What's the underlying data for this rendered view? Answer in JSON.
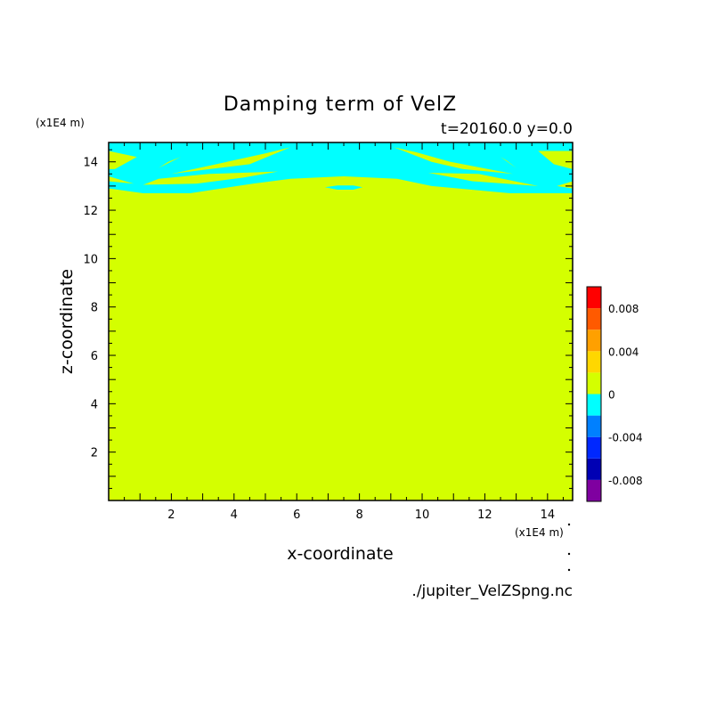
{
  "chart_data": {
    "type": "heatmap",
    "title": "Damping term of VelZ",
    "subtitle": "t=20160.0 y=0.0",
    "xlabel": "x-coordinate",
    "ylabel": "z-coordinate",
    "x_unit": "(x1E4 m)",
    "y_unit": "(x1E4 m)",
    "source": "./jupiter_VelZSpng.nc",
    "xlim": [
      0,
      14.8
    ],
    "ylim": [
      0,
      14.8
    ],
    "x_ticks": [
      2,
      4,
      6,
      8,
      10,
      12,
      14
    ],
    "y_ticks": [
      2,
      4,
      6,
      8,
      10,
      12,
      14
    ],
    "colorbar": {
      "levels": [
        -0.01,
        -0.008,
        -0.006,
        -0.004,
        -0.002,
        0,
        0.002,
        0.004,
        0.006,
        0.008,
        0.01
      ],
      "colors": [
        "#7f00a0",
        "#0000b4",
        "#0028ff",
        "#0080ff",
        "#00ffff",
        "#d4ff00",
        "#ffd700",
        "#ffa000",
        "#ff5a00",
        "#ff0000",
        "#ffaaaa"
      ],
      "tick_labels": [
        "-0.008",
        "-0.004",
        "0",
        "0.004",
        "0.008"
      ],
      "tick_values": [
        -0.008,
        -0.004,
        0,
        0.004,
        0.008
      ]
    },
    "background_value_range": [
      0,
      0.002
    ],
    "regions": [
      {
        "value_range": [
          -0.002,
          0
        ],
        "polygon": [
          [
            0,
            14.8
          ],
          [
            14.8,
            14.8
          ],
          [
            14.8,
            13.2
          ],
          [
            14.3,
            13.0
          ],
          [
            14.8,
            12.9
          ],
          [
            14.8,
            12.7
          ],
          [
            12.8,
            12.7
          ],
          [
            10.3,
            13.0
          ],
          [
            9.2,
            13.3
          ],
          [
            7.5,
            13.4
          ],
          [
            5.8,
            13.3
          ],
          [
            4.6,
            13.1
          ],
          [
            2.6,
            12.7
          ],
          [
            1.1,
            12.7
          ],
          [
            0,
            12.9
          ],
          [
            0,
            13.2
          ],
          [
            0.8,
            13.1
          ],
          [
            0,
            13.4
          ]
        ]
      },
      {
        "value_range": [
          -0.002,
          0
        ],
        "polygon": [
          [
            6.9,
            12.95
          ],
          [
            7.3,
            12.85
          ],
          [
            7.8,
            12.85
          ],
          [
            8.1,
            12.95
          ],
          [
            7.8,
            13.02
          ],
          [
            7.3,
            13.02
          ]
        ]
      }
    ],
    "bands_near_zero": [
      {
        "value_range": [
          0,
          0.002
        ],
        "polygon": [
          [
            0,
            14.45
          ],
          [
            0.9,
            14.2
          ],
          [
            0.2,
            13.7
          ],
          [
            0,
            13.7
          ]
        ]
      },
      {
        "value_range": [
          0,
          0.002
        ],
        "polygon": [
          [
            2.0,
            13.5
          ],
          [
            4.5,
            13.9
          ],
          [
            5.8,
            14.6
          ],
          [
            5.0,
            14.35
          ],
          [
            3.6,
            13.95
          ]
        ]
      },
      {
        "value_range": [
          0,
          0.002
        ],
        "polygon": [
          [
            1.1,
            13.05
          ],
          [
            2.8,
            13.1
          ],
          [
            4.3,
            13.35
          ],
          [
            5.4,
            13.6
          ],
          [
            3.2,
            13.5
          ],
          [
            1.6,
            13.3
          ]
        ]
      },
      {
        "value_range": [
          0,
          0.002
        ],
        "polygon": [
          [
            1.6,
            13.75
          ],
          [
            2.3,
            14.2
          ],
          [
            1.9,
            14.0
          ]
        ]
      },
      {
        "value_range": [
          0,
          0.002
        ],
        "polygon": [
          [
            9.1,
            14.6
          ],
          [
            10.3,
            14.0
          ],
          [
            11.3,
            13.7
          ],
          [
            12.9,
            13.5
          ],
          [
            10.9,
            14.0
          ],
          [
            9.8,
            14.4
          ]
        ]
      },
      {
        "value_range": [
          0,
          0.002
        ],
        "polygon": [
          [
            10.2,
            13.55
          ],
          [
            11.6,
            13.2
          ],
          [
            13.7,
            13.0
          ],
          [
            11.8,
            13.5
          ]
        ]
      },
      {
        "value_range": [
          0,
          0.002
        ],
        "polygon": [
          [
            12.5,
            14.2
          ],
          [
            13.0,
            13.75
          ],
          [
            12.7,
            14.05
          ]
        ]
      },
      {
        "value_range": [
          0,
          0.002
        ],
        "polygon": [
          [
            13.7,
            14.45
          ],
          [
            14.8,
            14.45
          ],
          [
            14.8,
            13.7
          ],
          [
            14.2,
            13.9
          ]
        ]
      }
    ]
  }
}
